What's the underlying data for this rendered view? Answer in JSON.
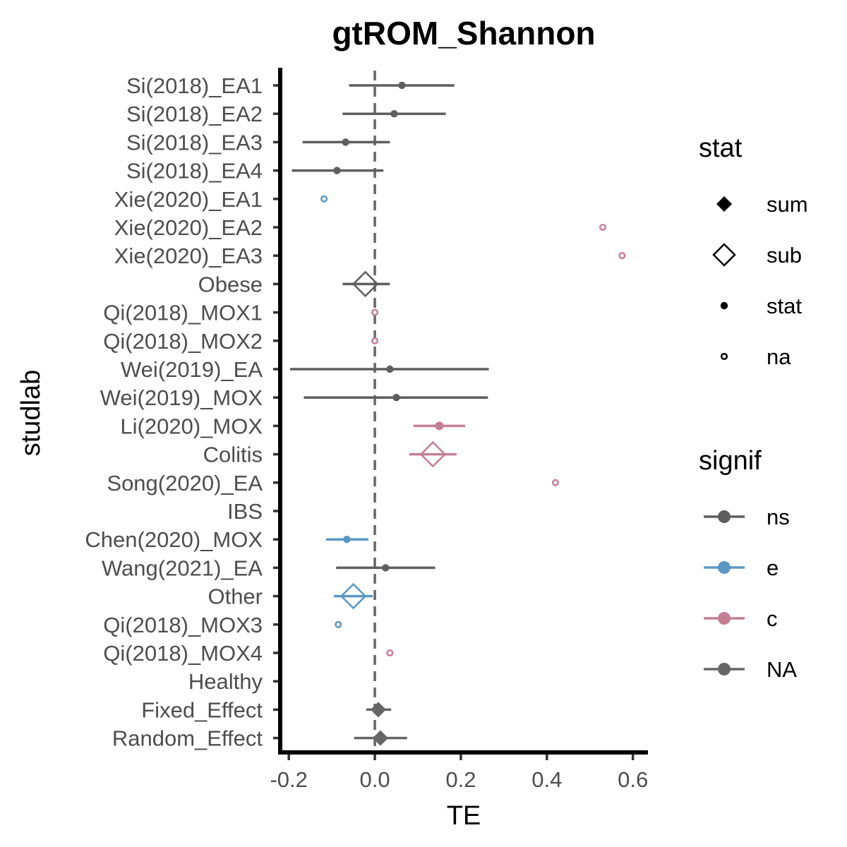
{
  "chart_data": {
    "type": "forest",
    "title": "gtROM_Shannon",
    "xlabel": "TE",
    "ylabel": "studlab",
    "xlim": [
      -0.22,
      0.635
    ],
    "xticks": [
      -0.2,
      0.0,
      0.2,
      0.4,
      0.6
    ],
    "xtick_labels": [
      "-0.2",
      "0.0",
      "0.2",
      "0.4",
      "0.6"
    ],
    "reference_line": 0.0,
    "colors": {
      "ns": "#5e5e5e",
      "e": "#5b97c4",
      "c": "#c47f95",
      "NA": "#666666"
    },
    "rows": [
      {
        "label": "Si(2018)_EA1",
        "te": 0.063,
        "lower": -0.06,
        "upper": 0.185,
        "stat": "stat",
        "signif": "ns"
      },
      {
        "label": "Si(2018)_EA2",
        "te": 0.045,
        "lower": -0.075,
        "upper": 0.165,
        "stat": "stat",
        "signif": "ns"
      },
      {
        "label": "Si(2018)_EA3",
        "te": -0.068,
        "lower": -0.168,
        "upper": 0.035,
        "stat": "stat",
        "signif": "ns"
      },
      {
        "label": "Si(2018)_EA4",
        "te": -0.088,
        "lower": -0.193,
        "upper": 0.02,
        "stat": "stat",
        "signif": "ns"
      },
      {
        "label": "Xie(2020)_EA1",
        "te": -0.118,
        "lower": null,
        "upper": null,
        "stat": "na",
        "signif": "e"
      },
      {
        "label": "Xie(2020)_EA2",
        "te": 0.53,
        "lower": null,
        "upper": null,
        "stat": "na",
        "signif": "c"
      },
      {
        "label": "Xie(2020)_EA3",
        "te": 0.575,
        "lower": null,
        "upper": null,
        "stat": "na",
        "signif": "c"
      },
      {
        "label": "Obese",
        "te": -0.022,
        "lower": -0.075,
        "upper": 0.035,
        "stat": "sub",
        "signif": "ns"
      },
      {
        "label": "Qi(2018)_MOX1",
        "te": 0.0,
        "lower": null,
        "upper": null,
        "stat": "na",
        "signif": "c"
      },
      {
        "label": "Qi(2018)_MOX2",
        "te": 0.0,
        "lower": null,
        "upper": null,
        "stat": "na",
        "signif": "c"
      },
      {
        "label": "Wei(2019)_EA",
        "te": 0.035,
        "lower": -0.197,
        "upper": 0.265,
        "stat": "stat",
        "signif": "ns"
      },
      {
        "label": "Wei(2019)_MOX",
        "te": 0.05,
        "lower": -0.165,
        "upper": 0.263,
        "stat": "stat",
        "signif": "ns"
      },
      {
        "label": "Li(2020)_MOX",
        "te": 0.15,
        "lower": 0.09,
        "upper": 0.21,
        "stat": "stat",
        "signif": "c"
      },
      {
        "label": "Colitis",
        "te": 0.135,
        "lower": 0.08,
        "upper": 0.19,
        "stat": "sub",
        "signif": "c"
      },
      {
        "label": "Song(2020)_EA",
        "te": 0.42,
        "lower": null,
        "upper": null,
        "stat": "na",
        "signif": "c"
      },
      {
        "label": "IBS",
        "te": null,
        "lower": null,
        "upper": null,
        "stat": null,
        "signif": null
      },
      {
        "label": "Chen(2020)_MOX",
        "te": -0.065,
        "lower": -0.113,
        "upper": -0.015,
        "stat": "stat",
        "signif": "e"
      },
      {
        "label": "Wang(2021)_EA",
        "te": 0.025,
        "lower": -0.09,
        "upper": 0.14,
        "stat": "stat",
        "signif": "ns"
      },
      {
        "label": "Other",
        "te": -0.05,
        "lower": -0.095,
        "upper": -0.005,
        "stat": "sub",
        "signif": "e"
      },
      {
        "label": "Qi(2018)_MOX3",
        "te": -0.085,
        "lower": null,
        "upper": null,
        "stat": "na",
        "signif": "e"
      },
      {
        "label": "Qi(2018)_MOX4",
        "te": 0.035,
        "lower": null,
        "upper": null,
        "stat": "na",
        "signif": "c"
      },
      {
        "label": "Healthy",
        "te": null,
        "lower": null,
        "upper": null,
        "stat": null,
        "signif": null
      },
      {
        "label": "Fixed_Effect",
        "te": 0.008,
        "lower": -0.02,
        "upper": 0.038,
        "stat": "sum",
        "signif": "NA"
      },
      {
        "label": "Random_Effect",
        "te": 0.013,
        "lower": -0.048,
        "upper": 0.075,
        "stat": "sum",
        "signif": "NA"
      }
    ],
    "legends": [
      {
        "title": "stat",
        "items": [
          {
            "label": "sum",
            "shape": "diamond-filled"
          },
          {
            "label": "sub",
            "shape": "diamond-open"
          },
          {
            "label": "stat",
            "shape": "dot"
          },
          {
            "label": "na",
            "shape": "circle-open"
          }
        ]
      },
      {
        "title": "signif",
        "items": [
          {
            "label": "ns",
            "key": "ns"
          },
          {
            "label": "e",
            "key": "e"
          },
          {
            "label": "c",
            "key": "c"
          },
          {
            "label": "NA",
            "key": "NA"
          }
        ]
      }
    ],
    "legend_position": "right"
  }
}
